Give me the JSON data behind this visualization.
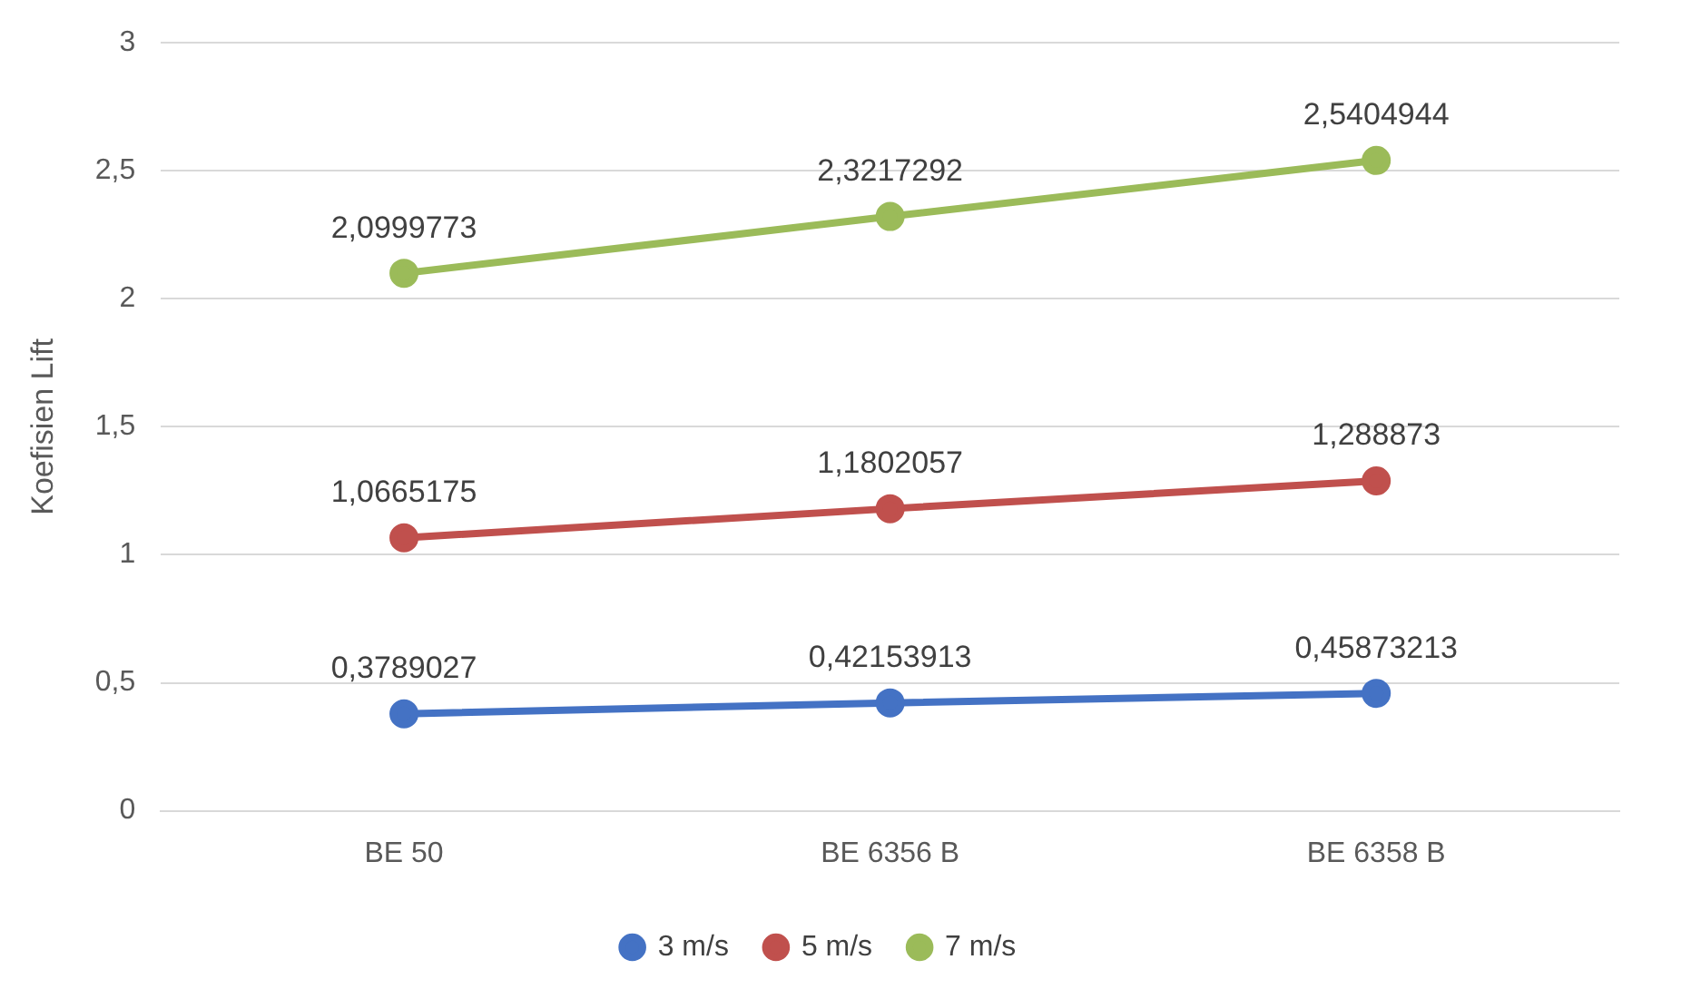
{
  "chart_data": {
    "type": "line",
    "ylabel": "Koefisien Lift",
    "categories": [
      "BE 50",
      "BE 6356 B",
      "BE 6358 B"
    ],
    "series": [
      {
        "name": "3 m/s",
        "color": "#4472c4",
        "values": [
          0.3789027,
          0.42153913,
          0.45873213
        ],
        "value_labels": [
          "0,3789027",
          "0,42153913",
          "0,45873213"
        ]
      },
      {
        "name": "5 m/s",
        "color": "#c0504d",
        "values": [
          1.0665175,
          1.1802057,
          1.288873
        ],
        "value_labels": [
          "1,0665175",
          "1,1802057",
          "1,288873"
        ]
      },
      {
        "name": "7 m/s",
        "color": "#9bbb59",
        "values": [
          2.0999773,
          2.3217292,
          2.5404944
        ],
        "value_labels": [
          "2,0999773",
          "2,3217292",
          "2,5404944"
        ]
      }
    ],
    "ylim": [
      0,
      3
    ],
    "yticks": [
      0,
      {
        "value": 0.5,
        "label": "0,5"
      },
      1,
      {
        "value": 1.5,
        "label": "1,5"
      },
      2,
      {
        "value": 2.5,
        "label": "2,5"
      },
      3
    ],
    "grid": "y",
    "legend": "bottom",
    "marker": "circle",
    "line_style": "solid"
  }
}
